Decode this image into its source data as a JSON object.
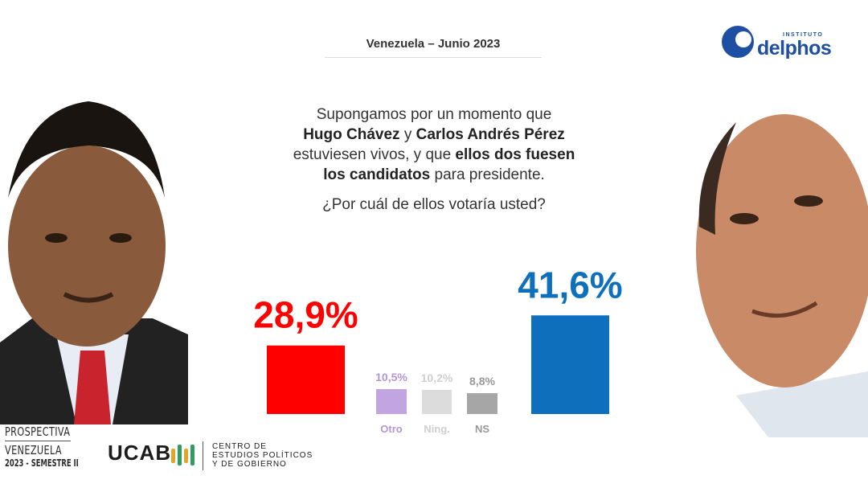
{
  "header": {
    "title": "Venezuela  –  Junio 2023"
  },
  "logo": {
    "instituto": "INSTITUTO",
    "name": "delphos"
  },
  "question": {
    "line1": "Supongamos por un momento que",
    "name1": "Hugo Chávez",
    "and": " y ",
    "name2": "Carlos Andrés Pérez",
    "line3a": "estuviesen vivos, y que ",
    "line3b": "ellos dos fuesen",
    "line4a": "los candidatos",
    "line4b": " para presidente.",
    "ask": "¿Por cuál de ellos votaría usted?"
  },
  "chart_data": {
    "type": "bar",
    "categories": [
      "Hugo Chávez",
      "Otro",
      "Ning.",
      "NS",
      "Carlos Andrés Pérez"
    ],
    "values": [
      28.9,
      10.5,
      10.2,
      8.8,
      41.6
    ],
    "value_labels": [
      "28,9%",
      "10,5%",
      "10,2%",
      "8,8%",
      "41,6%"
    ],
    "category_labels": [
      "",
      "Otro",
      "Ning.",
      "NS",
      ""
    ],
    "colors": [
      "#ff0000",
      "#c2a5e0",
      "#dcdcdc",
      "#a6a6a6",
      "#0e6fbd"
    ],
    "label_colors": [
      "#ff0000",
      "#b296d6",
      "#cfcfcf",
      "#999999",
      "#0e6fbd"
    ],
    "unit": "%"
  },
  "footer": {
    "prospectiva_1": "PROSPECTIVA",
    "prospectiva_2": "VENEZUELA",
    "prospectiva_3": "2023 - SEMESTRE II",
    "ucab": "UCAB",
    "centro_1": "CENTRO DE",
    "centro_2": "ESTUDIOS POLÍTICOS",
    "centro_3": "Y DE GOBIERNO"
  }
}
